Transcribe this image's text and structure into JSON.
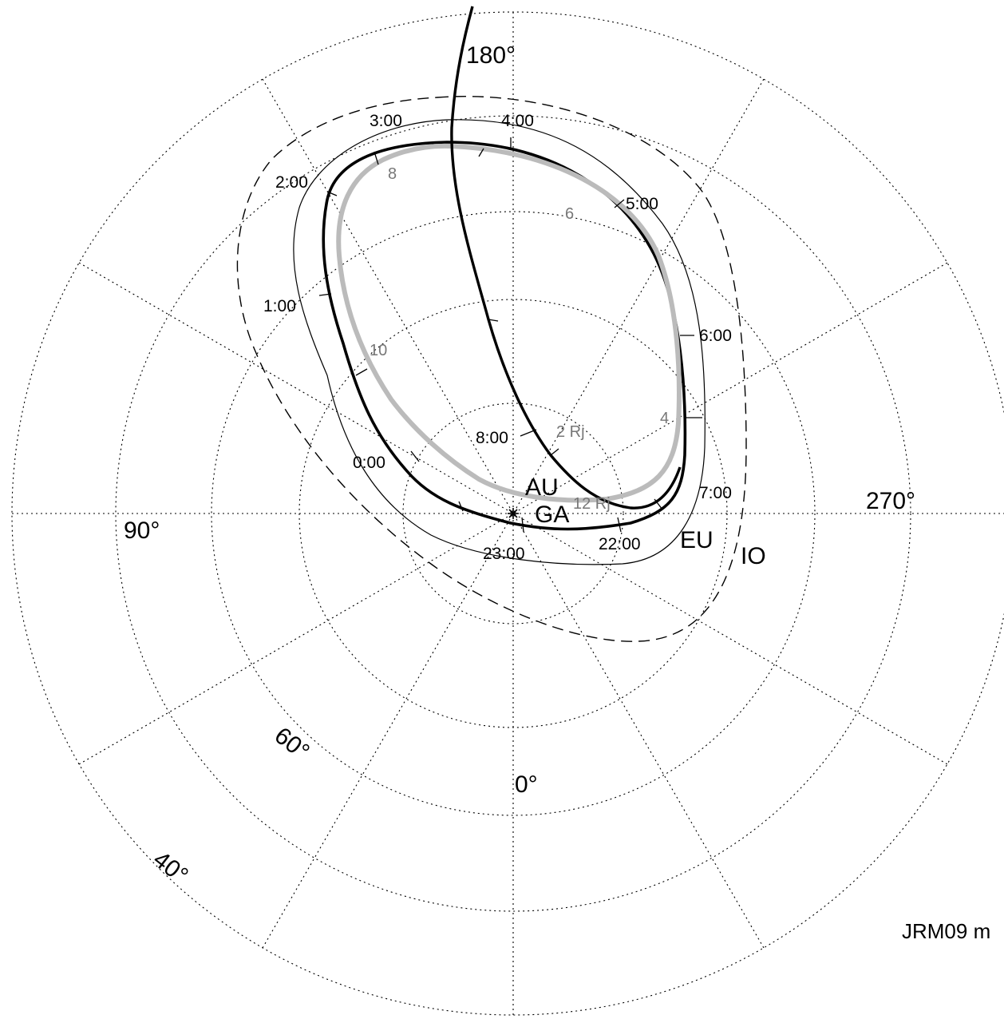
{
  "angle_labels": {
    "deg_180": "180°",
    "deg_90": "90°",
    "deg_270": "270°",
    "deg_0": "0°"
  },
  "colatitude_labels": {
    "lat_60": "60°",
    "lat_40": "40°"
  },
  "oval_labels": {
    "io": "IO",
    "europa": "EU",
    "ganymede": "GA",
    "aurora": "AU"
  },
  "time_labels": [
    "0:00",
    "1:00",
    "2:00",
    "3:00",
    "4:00",
    "5:00",
    "6:00",
    "7:00",
    "8:00",
    "22:00",
    "23:00"
  ],
  "distance_labels": [
    "8",
    "6",
    "4",
    "10",
    "2 Rj",
    "12 Rj"
  ],
  "model_note": "JRM09 m",
  "colors": {
    "grid": "#000000",
    "aurora_oval": "#bbbbbb",
    "trajectory": "#000000",
    "distance_text": "#777777"
  }
}
